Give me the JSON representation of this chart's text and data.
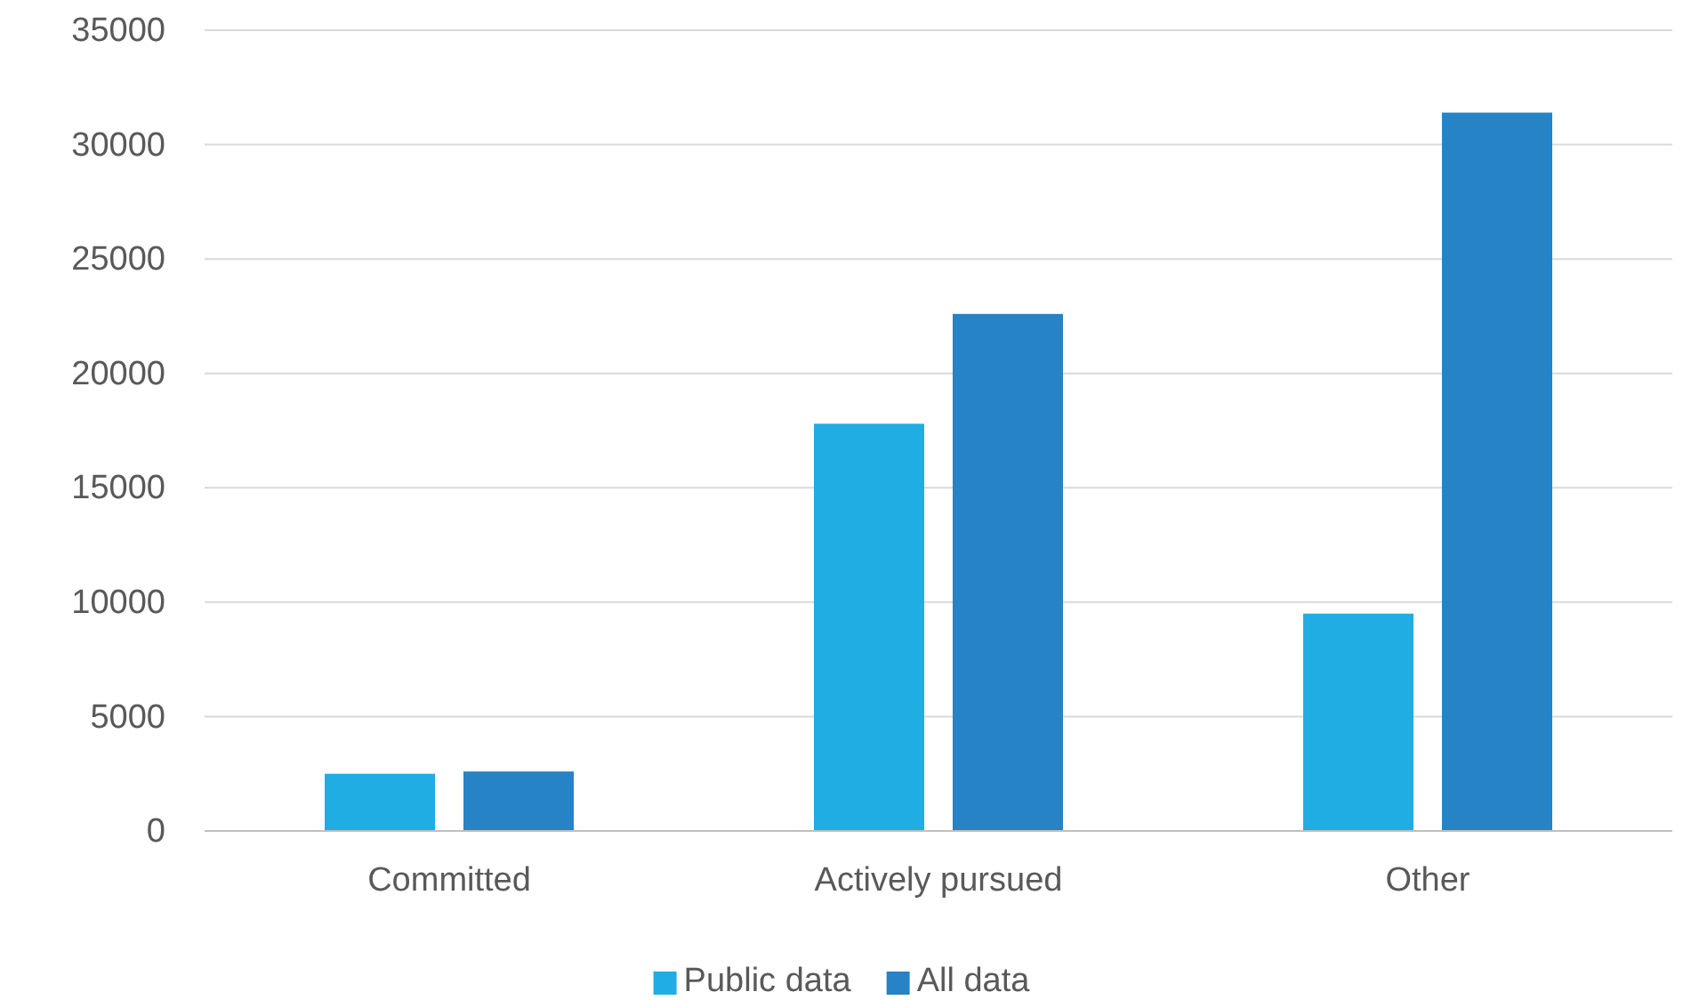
{
  "chart_data": {
    "type": "bar",
    "categories": [
      "Committed",
      "Actively pursued",
      "Other"
    ],
    "series": [
      {
        "name": "Public data",
        "color": "#1fade4",
        "values": [
          2500,
          17800,
          9500
        ]
      },
      {
        "name": "All data",
        "color": "#2683c6",
        "values": [
          2600,
          22600,
          31400
        ]
      }
    ],
    "ylim": [
      0,
      35000
    ],
    "yticks": [
      0,
      5000,
      10000,
      15000,
      20000,
      25000,
      30000,
      35000
    ],
    "grid": "y",
    "legend": "bottom"
  }
}
